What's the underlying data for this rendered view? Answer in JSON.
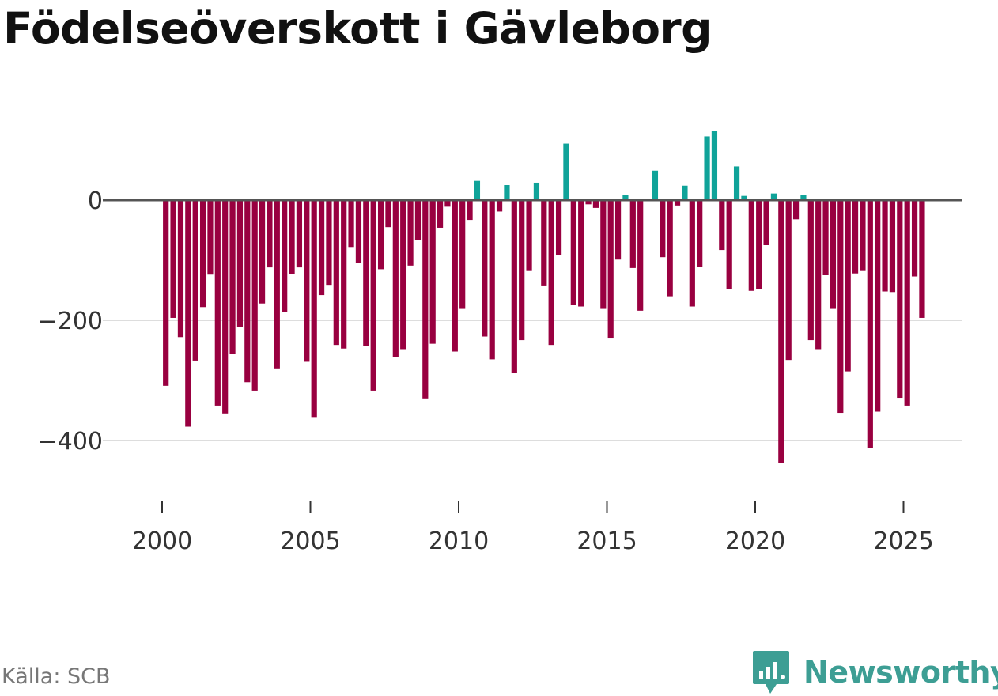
{
  "chart_data": {
    "type": "bar",
    "title": "Födelseöverskott i Gävleborg",
    "xlabel": "",
    "ylabel": "",
    "ylim": [
      -480,
      130
    ],
    "x_ticks": [
      "2000",
      "2005",
      "2010",
      "2015",
      "2020",
      "2025"
    ],
    "y_ticks": [
      "0",
      "−200",
      "−400"
    ],
    "y_tick_values": [
      0,
      -200,
      -400
    ],
    "start": "2000-01",
    "frequency": "quarterly",
    "colors": {
      "positive": "#0fa399",
      "negative": "#990040",
      "zero_line": "#555555",
      "grid": "#dddddd"
    },
    "values": [
      -309,
      -196,
      -228,
      -377,
      -267,
      -178,
      -124,
      -342,
      -355,
      -256,
      -211,
      -303,
      -317,
      -172,
      -112,
      -280,
      -186,
      -123,
      -112,
      -269,
      -361,
      -158,
      -141,
      -241,
      -247,
      -78,
      -105,
      -243,
      -317,
      -115,
      -45,
      -261,
      -248,
      -109,
      -67,
      -330,
      -239,
      -46,
      -11,
      -252,
      -181,
      -33,
      32,
      -227,
      -265,
      -19,
      25,
      -287,
      -233,
      -118,
      29,
      -142,
      -241,
      -92,
      94,
      -175,
      -177,
      -7,
      -13,
      -181,
      -229,
      -99,
      8,
      -113,
      -184,
      0,
      49,
      -95,
      -160,
      -9,
      24,
      -177,
      -111,
      106,
      115,
      -83,
      -148,
      56,
      7,
      -151,
      -148,
      -75,
      11,
      -437,
      -266,
      -32,
      8,
      -233,
      -248,
      -125,
      -181,
      -354,
      -285,
      -122,
      -118,
      -413,
      -352,
      -152,
      -153,
      -329,
      -342,
      -127,
      -196
    ]
  },
  "source_label": "Källa: SCB",
  "brand": {
    "name": "Newsworthy",
    "color": "#3d9e94"
  }
}
